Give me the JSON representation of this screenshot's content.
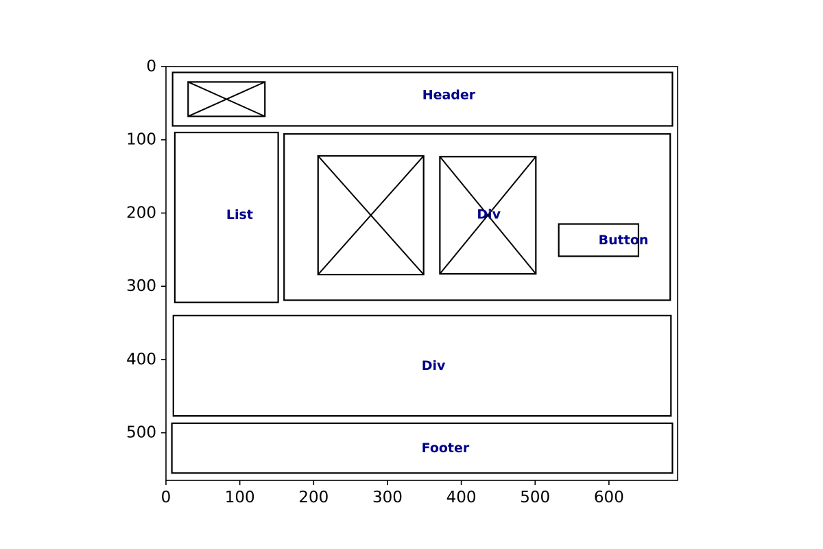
{
  "colors": {
    "outline": "#000000",
    "label": "#00008b",
    "background": "#ffffff"
  },
  "chart_data": {
    "type": "wireframe",
    "title": "",
    "xlabel": "",
    "ylabel": "",
    "xlim": [
      0,
      693
    ],
    "ylim": [
      565,
      0
    ],
    "grid": false,
    "xticks": [
      0,
      100,
      200,
      300,
      400,
      500,
      600
    ],
    "xtick_labels": [
      "0",
      "100",
      "200",
      "300",
      "400",
      "500",
      "600"
    ],
    "yticks": [
      0,
      100,
      200,
      300,
      400,
      500
    ],
    "ytick_labels": [
      "0",
      "100",
      "200",
      "300",
      "400",
      "500"
    ],
    "boxes": [
      {
        "id": "header",
        "label": "Header",
        "x0": 9,
        "y0": 8,
        "x1": 686,
        "y1": 81,
        "cross": false
      },
      {
        "id": "header-image",
        "label": "",
        "x0": 30,
        "y0": 21,
        "x1": 134,
        "y1": 68,
        "cross": true
      },
      {
        "id": "list",
        "label": "List",
        "x0": 12,
        "y0": 90,
        "x1": 152,
        "y1": 322,
        "cross": false
      },
      {
        "id": "content-div",
        "label": "",
        "x0": 160,
        "y0": 92,
        "x1": 683,
        "y1": 319,
        "cross": false
      },
      {
        "id": "content-image-1",
        "label": "",
        "x0": 206,
        "y0": 122,
        "x1": 349,
        "y1": 284,
        "cross": true
      },
      {
        "id": "content-image-2",
        "label": "Div",
        "x0": 371,
        "y0": 123,
        "x1": 501,
        "y1": 283,
        "cross": true
      },
      {
        "id": "button",
        "label": "Button",
        "x0": 532,
        "y0": 215,
        "x1": 640,
        "y1": 259,
        "cross": false
      },
      {
        "id": "middle-div",
        "label": "Div",
        "x0": 10,
        "y0": 340,
        "x1": 684,
        "y1": 477,
        "cross": false
      },
      {
        "id": "footer",
        "label": "Footer",
        "x0": 8,
        "y0": 487,
        "x1": 686,
        "y1": 555,
        "cross": false
      }
    ]
  }
}
